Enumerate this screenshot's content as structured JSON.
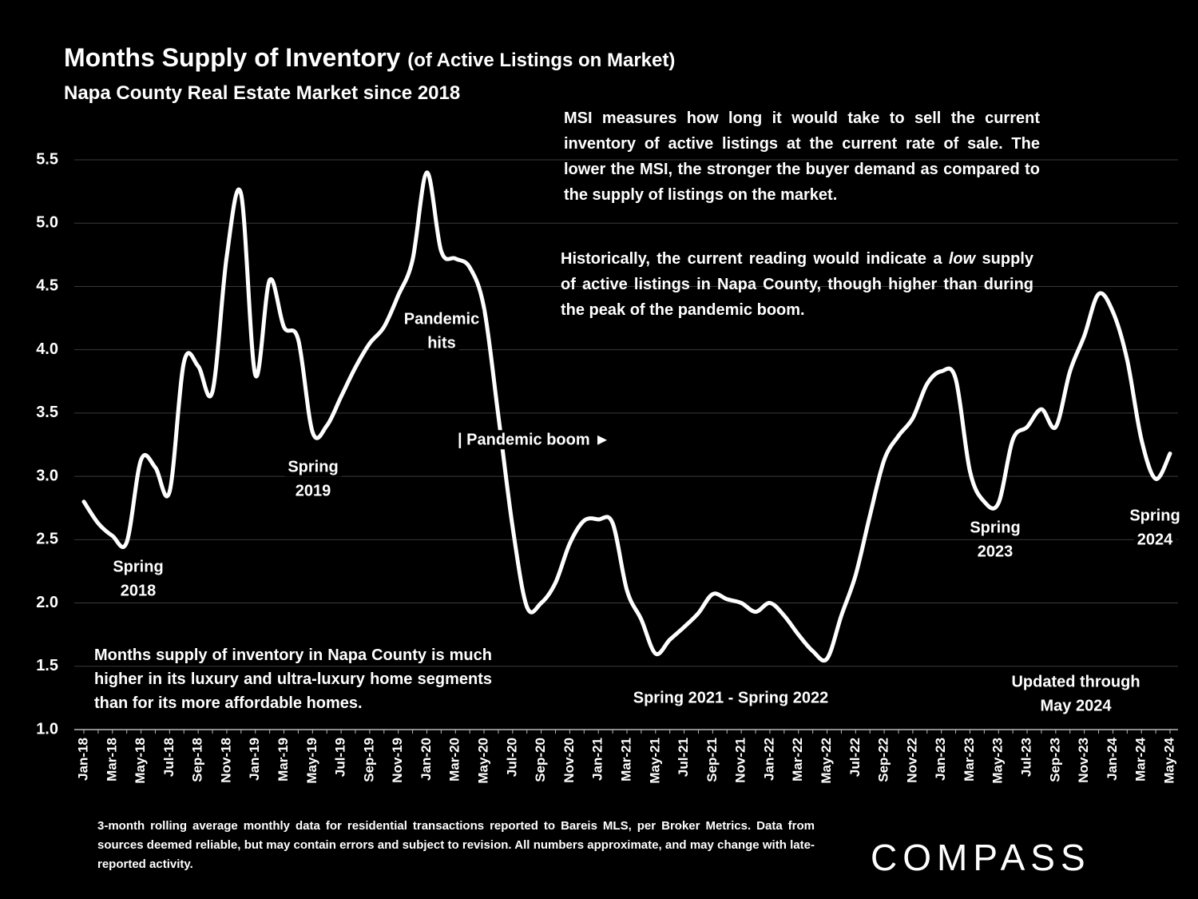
{
  "chart_data": {
    "type": "line",
    "title": "Months Supply of Inventory",
    "title_note": "(of Active Listings on Market)",
    "subtitle": "Napa County Real Estate Market since 2018",
    "categories": [
      "Jan-18",
      null,
      "Mar-18",
      null,
      "May-18",
      null,
      "Jul-18",
      null,
      "Sep-18",
      null,
      "Nov-18",
      null,
      "Jan-19",
      null,
      "Mar-19",
      null,
      "May-19",
      null,
      "Jul-19",
      null,
      "Sep-19",
      null,
      "Nov-19",
      null,
      "Jan-20",
      null,
      "Mar-20",
      null,
      "May-20",
      null,
      "Jul-20",
      null,
      "Sep-20",
      null,
      "Nov-20",
      null,
      "Jan-21",
      null,
      "Mar-21",
      null,
      "May-21",
      null,
      "Jul-21",
      null,
      "Sep-21",
      null,
      "Nov-21",
      null,
      "Jan-22",
      null,
      "Mar-22",
      null,
      "May-22",
      null,
      "Jul-22",
      null,
      "Sep-22",
      null,
      "Nov-22",
      null,
      "Jan-23",
      null,
      "Mar-23",
      null,
      "May-23",
      null,
      "Jul-23",
      null,
      "Sep-23",
      null,
      "Nov-23",
      null,
      "Jan-24",
      null,
      "Mar-24",
      null,
      "May-24"
    ],
    "series": [
      {
        "color": "#ffffff",
        "values": [
          2.8,
          2.63,
          2.53,
          2.48,
          3.13,
          3.07,
          2.88,
          3.9,
          3.87,
          3.67,
          4.74,
          5.23,
          3.8,
          4.55,
          4.18,
          4.08,
          3.35,
          3.4,
          3.63,
          3.86,
          4.05,
          4.18,
          4.43,
          4.71,
          5.4,
          4.78,
          4.72,
          4.65,
          4.33,
          3.48,
          2.6,
          1.97,
          2.0,
          2.16,
          2.47,
          2.65,
          2.66,
          2.63,
          2.1,
          1.87,
          1.6,
          1.71,
          1.81,
          1.92,
          2.07,
          2.03,
          2.0,
          1.93,
          2.0,
          1.9,
          1.75,
          1.62,
          1.56,
          1.9,
          2.22,
          2.69,
          3.13,
          3.32,
          3.46,
          3.73,
          3.83,
          3.77,
          3.04,
          2.8,
          2.79,
          3.29,
          3.39,
          3.53,
          3.39,
          3.83,
          4.11,
          4.44,
          4.3,
          3.92,
          3.29,
          2.98,
          3.18
        ]
      }
    ],
    "ylim": [
      1,
      5.5
    ],
    "yticks": [
      {
        "value": 1,
        "label": "1.0"
      },
      1.5,
      {
        "value": 2,
        "label": "2.0"
      },
      2.5,
      {
        "value": 3,
        "label": "3.0"
      },
      3.5,
      {
        "value": 4,
        "label": "4.0"
      },
      4.5,
      {
        "value": 5,
        "label": "5.0"
      },
      5.5
    ],
    "grid": true,
    "annotations": [
      {
        "lines": [
          "Spring",
          "2018"
        ]
      },
      {
        "lines": [
          "Spring",
          "2019"
        ]
      },
      {
        "lines": [
          "Pandemic",
          "hits"
        ]
      },
      {
        "lines": [
          "| Pandemic boom ►"
        ]
      },
      {
        "lines": [
          "Spring 2021 - Spring 2022"
        ]
      },
      {
        "lines": [
          "Spring",
          "2023"
        ]
      },
      {
        "lines": [
          "Spring",
          "2024"
        ]
      },
      {
        "lines": [
          "Updated through",
          "May 2024"
        ]
      }
    ],
    "notes": [
      {
        "parts": [
          "MSI measures how long it would take to sell the current inventory of active listings at the current rate of sale. The lower the MSI, the stronger the buyer demand as compared to the supply of listings on the market."
        ]
      },
      {
        "parts": [
          "Historically, the current reading would indicate a ",
          "low",
          " supply of active listings in Napa County, though higher than during the peak of the pandemic boom."
        ]
      },
      {
        "parts": [
          "Months supply of inventory in Napa County is much higher in its luxury and ultra-luxury home segments than for its more affordable homes."
        ]
      }
    ],
    "footnote": "3-month rolling average monthly data for residential transactions reported to Bareis MLS, per Broker Metrics. Data from sources deemed reliable, but may contain errors and subject to revision. All numbers approximate, and may change with late-reported activity.",
    "brand": "COMPASS"
  }
}
